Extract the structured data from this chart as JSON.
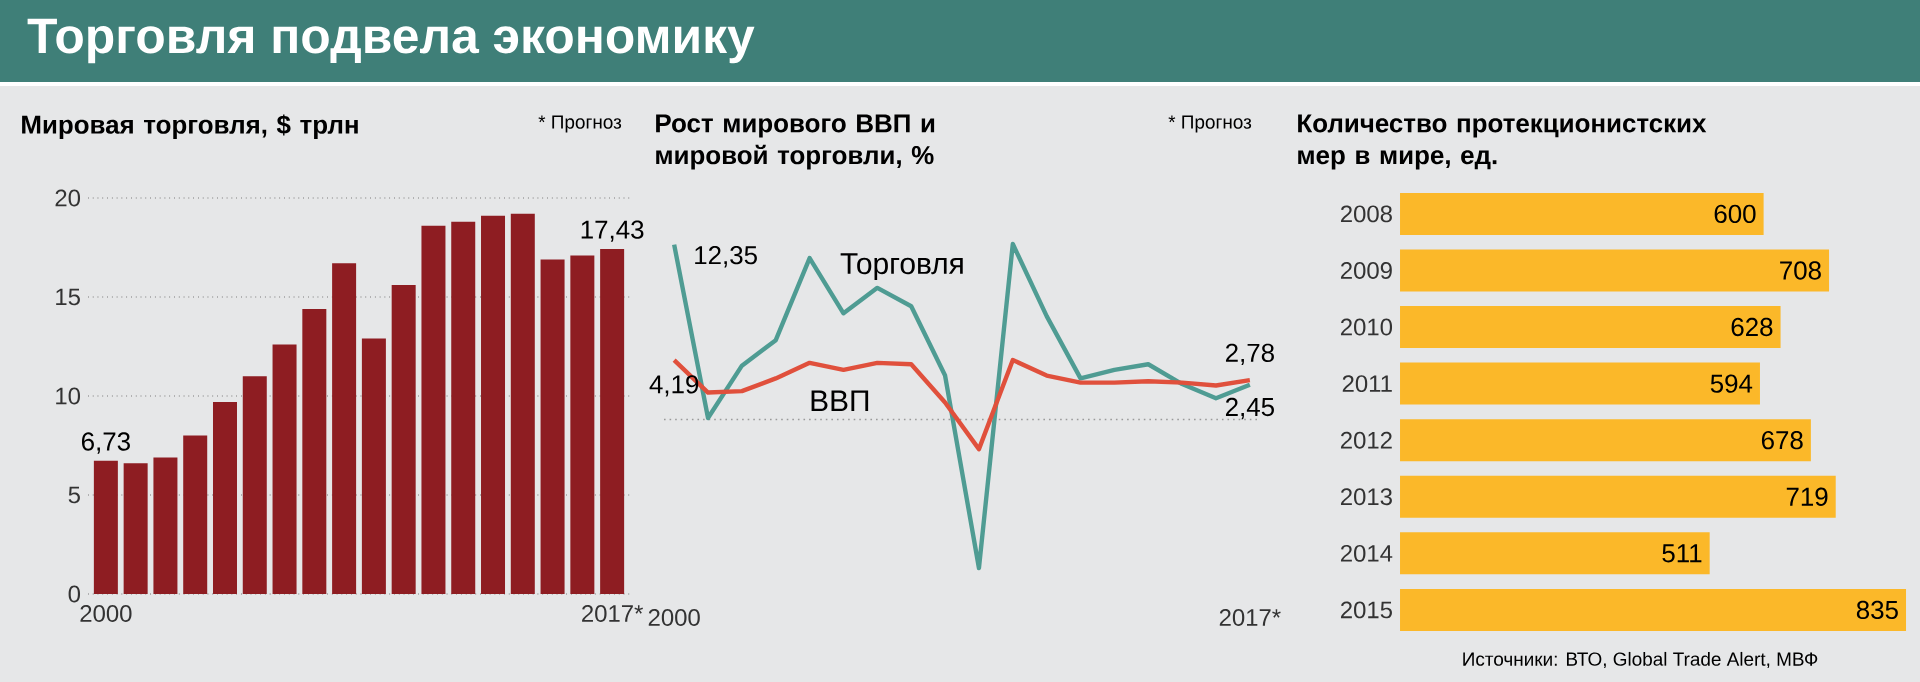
{
  "chart_data": [
    {
      "type": "bar",
      "title": "Торговля подвела экономику",
      "subtitle": "Мировая торговля, $ трлн",
      "categories": [
        "2000",
        null,
        null,
        null,
        null,
        null,
        null,
        null,
        null,
        null,
        null,
        null,
        null,
        null,
        null,
        null,
        null,
        "2017*"
      ],
      "values": [
        6.73,
        6.6,
        6.9,
        8.0,
        9.7,
        11.0,
        12.6,
        14.4,
        16.7,
        12.9,
        15.6,
        18.6,
        18.8,
        19.1,
        19.2,
        16.9,
        17.1,
        17.43
      ],
      "value_labels": [
        "6,73",
        null,
        null,
        null,
        null,
        null,
        null,
        null,
        null,
        null,
        null,
        null,
        null,
        null,
        null,
        null,
        null,
        "17,43"
      ],
      "color": "#8e1d22",
      "ylim": [
        0,
        20
      ],
      "yticks": [
        0,
        5,
        10,
        15,
        20
      ],
      "grid": "y",
      "annotations": [
        "* Прогноз"
      ]
    },
    {
      "type": "line",
      "title": "Рост мирового ВВП и мировой торговли, %",
      "categories": [
        "2000",
        null,
        null,
        null,
        null,
        null,
        null,
        null,
        null,
        null,
        null,
        null,
        null,
        null,
        null,
        null,
        null,
        "2017*"
      ],
      "series": [
        {
          "name": "Торговля",
          "color": "#4f9c93",
          "values": [
            12.35,
            0.1,
            3.8,
            5.6,
            11.4,
            7.5,
            9.3,
            8.0,
            3.1,
            -10.5,
            12.4,
            7.3,
            2.9,
            3.5,
            3.9,
            2.5,
            1.5,
            2.45
          ],
          "value_labels": [
            "12,35",
            null,
            null,
            null,
            null,
            null,
            null,
            null,
            null,
            null,
            null,
            null,
            null,
            null,
            null,
            null,
            null,
            "2,45"
          ]
        },
        {
          "name": "ВВП",
          "color": "#e0503c",
          "values": [
            4.19,
            1.9,
            2.0,
            2.9,
            4.0,
            3.5,
            4.0,
            3.9,
            1.2,
            -2.1,
            4.2,
            3.1,
            2.6,
            2.6,
            2.7,
            2.6,
            2.4,
            2.78
          ],
          "value_labels": [
            "4,19",
            null,
            null,
            null,
            null,
            null,
            null,
            null,
            null,
            null,
            null,
            null,
            null,
            null,
            null,
            null,
            null,
            "2,78"
          ]
        }
      ],
      "tick_labels": "x",
      "marker": "none",
      "line_style": "solid",
      "legend": false,
      "ref_lines": [
        {
          "axis": "y",
          "value": 0,
          "line_style": "dotted",
          "color": "#9a9a9a"
        }
      ],
      "annotations": [
        "* Прогноз"
      ]
    },
    {
      "type": "bar",
      "orientation": "horizontal",
      "title": "Количество протекционистских мер в мире, ед.",
      "categories": [
        "2008",
        "2009",
        "2010",
        "2011",
        "2012",
        "2013",
        "2014",
        "2015"
      ],
      "values": [
        600,
        708,
        628,
        594,
        678,
        719,
        511,
        835
      ],
      "data_labels": true,
      "color": "#fbb829",
      "xlim": [
        0,
        835
      ],
      "tick_labels": "y",
      "annotations": [
        "Источники: ВТО, Global Trade Alert, МВФ"
      ]
    }
  ]
}
